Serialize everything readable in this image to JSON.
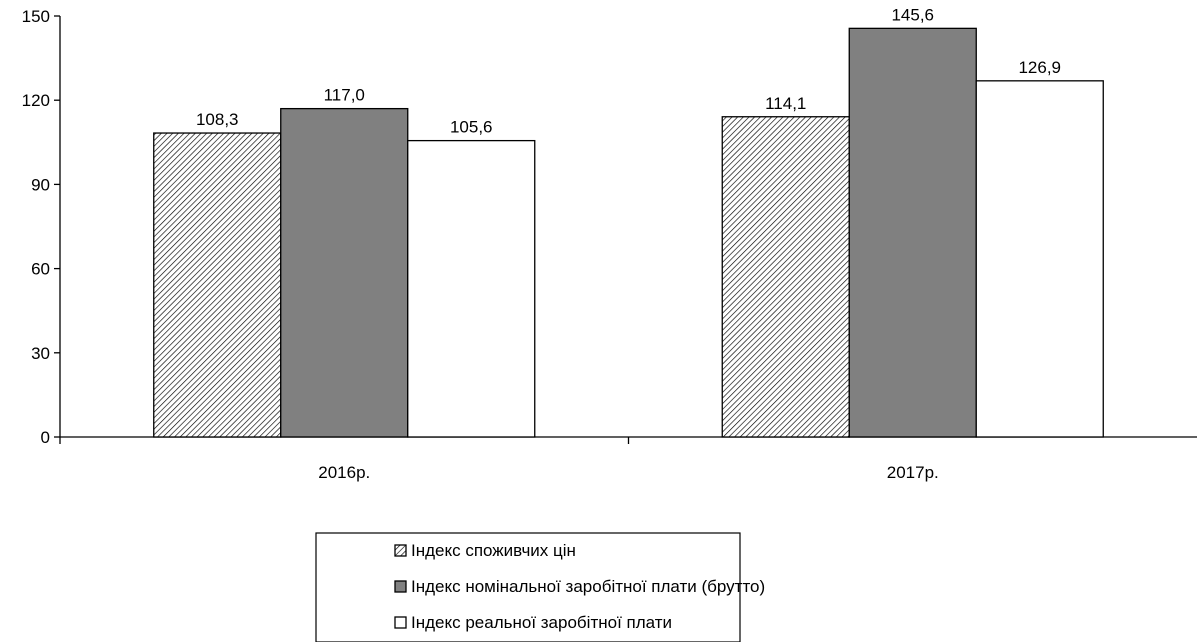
{
  "chart_data": {
    "type": "bar",
    "categories": [
      "2016р.",
      "2017р."
    ],
    "series": [
      {
        "name": "Індекс споживчих цін",
        "values": [
          108.3,
          114.1
        ],
        "labels": [
          "108,3",
          "114,1"
        ],
        "fill": "hatched"
      },
      {
        "name": "Індекс номінальної заробітної плати (брутто)",
        "values": [
          117.0,
          145.6
        ],
        "labels": [
          "117,0",
          "145,6"
        ],
        "fill": "#808080"
      },
      {
        "name": "Індекс реальної заробітної плати",
        "values": [
          105.6,
          126.9
        ],
        "labels": [
          "105,6",
          "126,9"
        ],
        "fill": "#ffffff"
      }
    ],
    "yticks": [
      0,
      30,
      60,
      90,
      120,
      150
    ],
    "ytick_labels": [
      "0",
      "30",
      "60",
      "90",
      "120",
      "150"
    ],
    "ylim": [
      0,
      150
    ],
    "grid": false,
    "legend_position": "bottom"
  }
}
